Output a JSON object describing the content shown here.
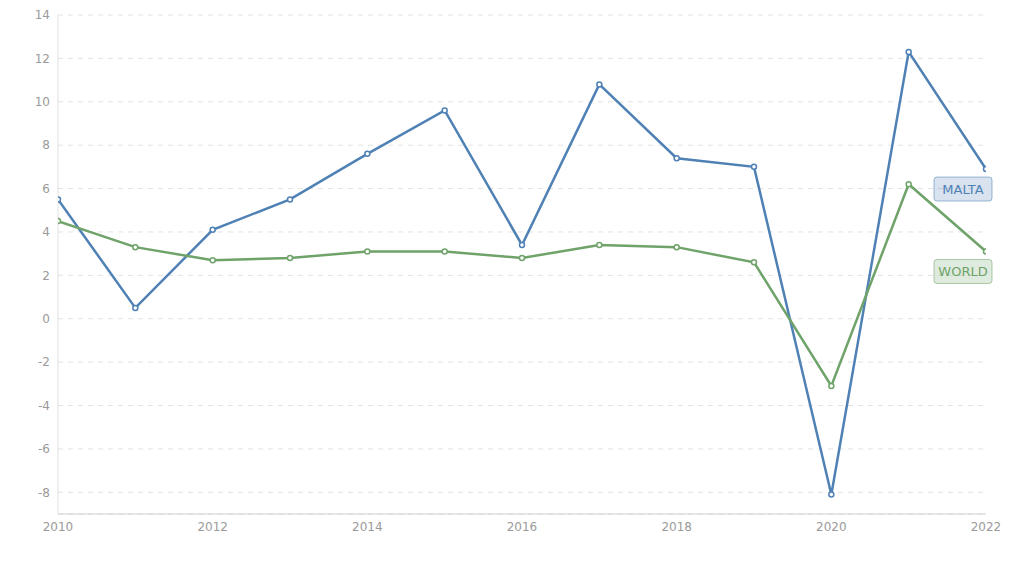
{
  "chart_data": {
    "type": "line",
    "x": [
      2010,
      2011,
      2012,
      2013,
      2014,
      2015,
      2016,
      2017,
      2018,
      2019,
      2020,
      2021,
      2022
    ],
    "series": [
      {
        "name": "MALTA",
        "color": "#4f81b5",
        "values": [
          5.5,
          0.5,
          4.1,
          5.5,
          7.6,
          9.6,
          3.4,
          10.8,
          7.4,
          7.0,
          -8.1,
          12.3,
          6.9
        ]
      },
      {
        "name": "WORLD",
        "color": "#6fa36a",
        "values": [
          4.5,
          3.3,
          2.7,
          2.8,
          3.1,
          3.1,
          2.8,
          3.4,
          3.3,
          2.6,
          -3.1,
          6.2,
          3.1
        ]
      }
    ],
    "xlim": [
      2010,
      2022
    ],
    "xticks": [
      2010,
      2012,
      2014,
      2016,
      2018,
      2020,
      2022
    ],
    "ylim": [
      -9,
      14
    ],
    "yticks": [
      -8,
      -6,
      -4,
      -2,
      0,
      2,
      4,
      6,
      8,
      10,
      12,
      14
    ],
    "grid": true,
    "marker": "circle"
  }
}
